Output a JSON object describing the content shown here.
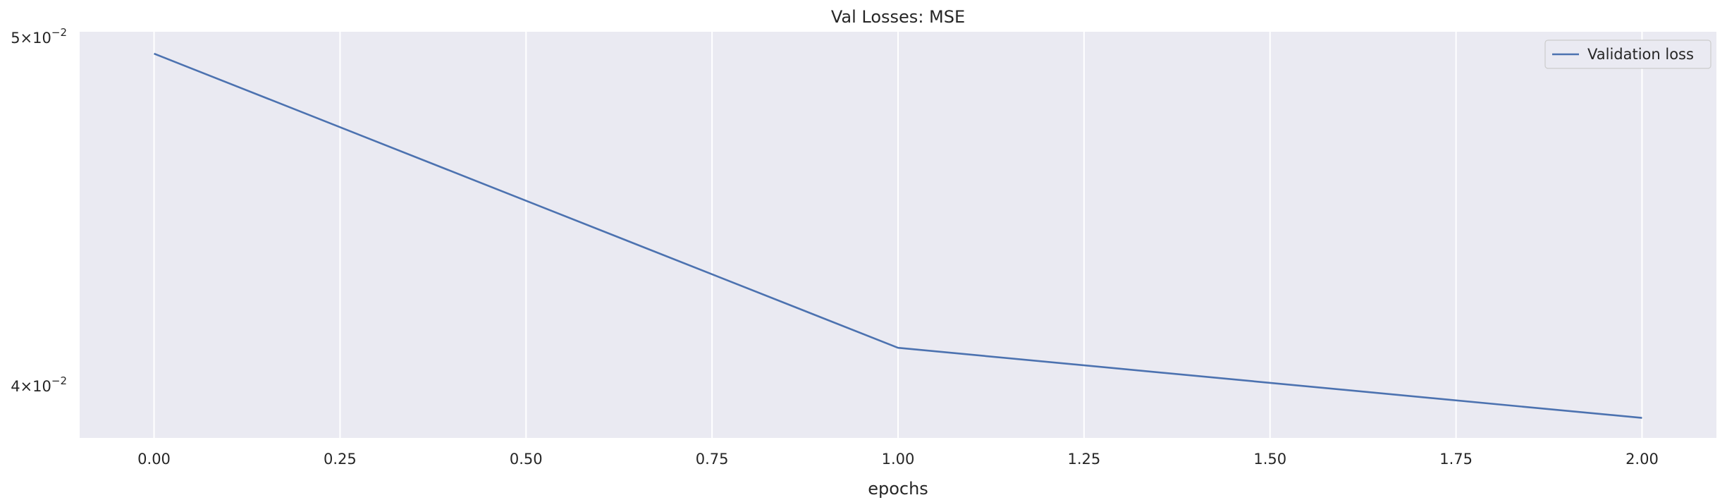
{
  "chart_data": {
    "type": "line",
    "title": "Val Losses:  MSE",
    "xlabel": "epochs",
    "ylabel": "",
    "yscale": "log",
    "x": [
      0,
      1,
      2
    ],
    "series": [
      {
        "name": "Validation loss",
        "values": [
          0.0495,
          0.041,
          0.0392
        ],
        "color": "#4c72b0"
      }
    ],
    "xlim": [
      -0.1,
      2.1
    ],
    "ylim": [
      0.0387,
      0.0502
    ],
    "xticks": [
      0.0,
      0.25,
      0.5,
      0.75,
      1.0,
      1.25,
      1.5,
      1.75,
      2.0
    ],
    "xtick_labels": [
      "0.00",
      "0.25",
      "0.50",
      "0.75",
      "1.00",
      "1.25",
      "1.50",
      "1.75",
      "2.00"
    ],
    "yticks": [
      {
        "value": 0.05,
        "mantissa": "5",
        "exponent": "−2"
      },
      {
        "value": 0.04,
        "mantissa": "4",
        "exponent": "−2"
      }
    ],
    "grid": true,
    "legend_position": "upper-right",
    "colors": {
      "background": "#eaeaf2",
      "grid": "#ffffff"
    }
  }
}
